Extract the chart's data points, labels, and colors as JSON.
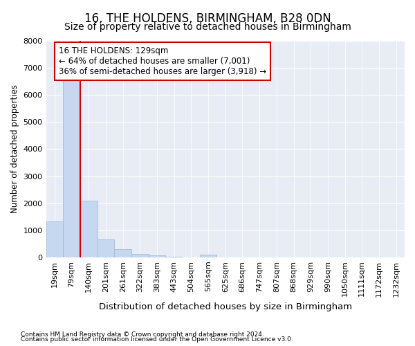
{
  "title": "16, THE HOLDENS, BIRMINGHAM, B28 0DN",
  "subtitle": "Size of property relative to detached houses in Birmingham",
  "xlabel": "Distribution of detached houses by size in Birmingham",
  "ylabel": "Number of detached properties",
  "categories": [
    "19sqm",
    "79sqm",
    "140sqm",
    "201sqm",
    "261sqm",
    "322sqm",
    "383sqm",
    "443sqm",
    "504sqm",
    "565sqm",
    "625sqm",
    "686sqm",
    "747sqm",
    "807sqm",
    "868sqm",
    "929sqm",
    "990sqm",
    "1050sqm",
    "1111sqm",
    "1172sqm",
    "1232sqm"
  ],
  "values": [
    1320,
    6600,
    2080,
    650,
    300,
    130,
    75,
    30,
    0,
    90,
    0,
    0,
    0,
    0,
    0,
    0,
    0,
    0,
    0,
    0,
    0
  ],
  "bar_color": "#c5d8ef",
  "bar_edge_color": "#a0bcd8",
  "vline_color": "#cc0000",
  "vline_x": 1.5,
  "annotation_line1": "16 THE HOLDENS: 129sqm",
  "annotation_line2": "← 64% of detached houses are smaller (7,001)",
  "annotation_line3": "36% of semi-detached houses are larger (3,918) →",
  "annotation_box_facecolor": "#ffffff",
  "annotation_box_edgecolor": "#cc0000",
  "ylim": [
    0,
    8000
  ],
  "yticks": [
    0,
    1000,
    2000,
    3000,
    4000,
    5000,
    6000,
    7000,
    8000
  ],
  "bg_color": "#e8edf5",
  "grid_color": "#ffffff",
  "footer1": "Contains HM Land Registry data © Crown copyright and database right 2024.",
  "footer2": "Contains public sector information licensed under the Open Government Licence v3.0.",
  "title_fontsize": 12,
  "subtitle_fontsize": 10,
  "xlabel_fontsize": 9.5,
  "ylabel_fontsize": 8.5,
  "tick_fontsize": 8,
  "annotation_fontsize": 8.5,
  "footer_fontsize": 6.5
}
